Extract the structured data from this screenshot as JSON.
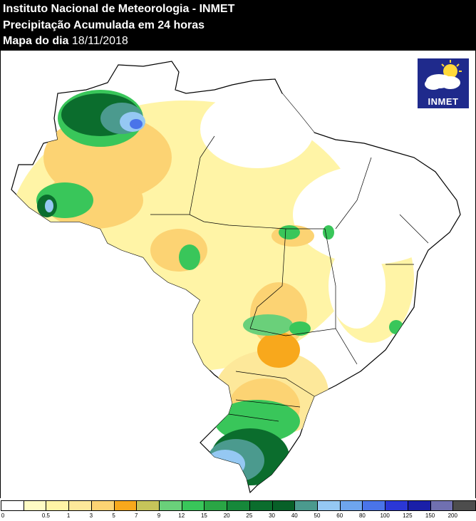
{
  "header": {
    "institution": "Instituto Nacional de Meteorologia - INMET",
    "product": "Precipitação Acumulada em 24 horas",
    "date_prefix": "Mapa do dia",
    "date_value": "18/11/2018"
  },
  "logo": {
    "text": "INMET"
  },
  "legend": {
    "labels": [
      "0",
      "0.5",
      "1",
      "3",
      "5",
      "7",
      "9",
      "12",
      "15",
      "20",
      "25",
      "30",
      "40",
      "50",
      "60",
      "80",
      "100",
      "125",
      "150",
      "200"
    ],
    "colors": [
      "#ffffff",
      "#fefbc4",
      "#fff4a6",
      "#fde89a",
      "#fcd373",
      "#f8a81c",
      "#c6c45a",
      "#6ad07a",
      "#39c65a",
      "#2aa645",
      "#16883a",
      "#0b6d2d",
      "#086028",
      "#4b9a8e",
      "#95c8f3",
      "#6ea5ee",
      "#4a74e9",
      "#2b37d6",
      "#1a1fa8",
      "#7070b0",
      "#4d4d4d"
    ]
  },
  "colors": {
    "background": "#000000",
    "title_text": "#ffffff",
    "border": "#000000",
    "logo_bg": "#1f2a8c"
  }
}
